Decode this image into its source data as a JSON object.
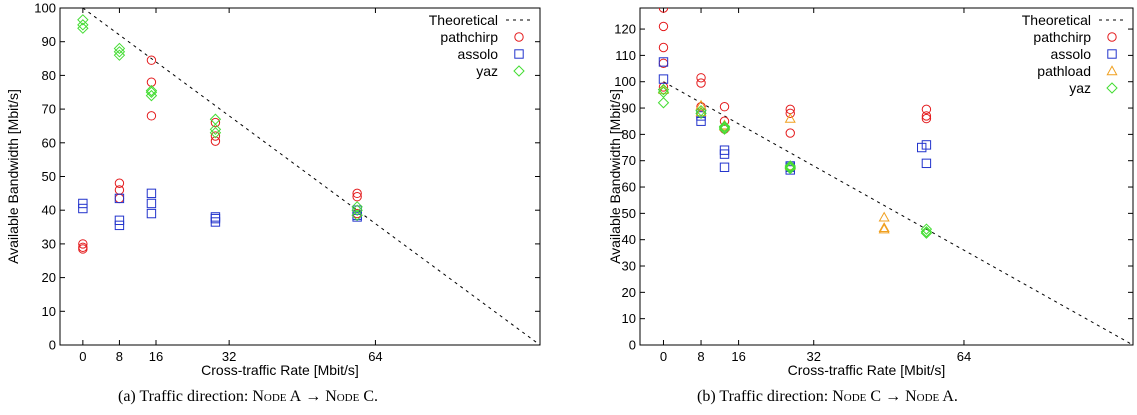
{
  "chart_data": [
    {
      "type": "scatter",
      "xlabel": "Cross-traffic Rate [Mbit/s]",
      "ylabel": "Available Bandwidth [Mbit/s]",
      "xlim": [
        -5,
        100
      ],
      "ylim": [
        0,
        100
      ],
      "xticks": [
        0,
        8,
        16,
        32,
        64
      ],
      "yticks": [
        0,
        10,
        20,
        30,
        40,
        50,
        60,
        70,
        80,
        90,
        100
      ],
      "grid": false,
      "legend_position": "top-right",
      "theoretical": {
        "name": "Theoretical",
        "x": [
          0,
          100
        ],
        "y": [
          100,
          0
        ],
        "color": "#000000"
      },
      "series": [
        {
          "name": "pathchirp",
          "marker": "circle",
          "color": "#e41a1c",
          "points": [
            [
              0,
              30
            ],
            [
              0,
              29
            ],
            [
              0,
              28.5
            ],
            [
              8,
              48
            ],
            [
              8,
              46
            ],
            [
              8,
              43.5
            ],
            [
              15,
              84.5
            ],
            [
              15,
              78
            ],
            [
              15,
              68
            ],
            [
              29,
              66
            ],
            [
              29,
              62
            ],
            [
              29,
              60.5
            ],
            [
              60,
              45
            ],
            [
              60,
              44
            ],
            [
              60,
              39
            ]
          ]
        },
        {
          "name": "assolo",
          "marker": "square",
          "color": "#2233cc",
          "points": [
            [
              0,
              42
            ],
            [
              0,
              40.5
            ],
            [
              8,
              43.5
            ],
            [
              8,
              37
            ],
            [
              8,
              35.5
            ],
            [
              15,
              45
            ],
            [
              15,
              42
            ],
            [
              15,
              39
            ],
            [
              29,
              38
            ],
            [
              29,
              37.5
            ],
            [
              29,
              36.5
            ],
            [
              60,
              40
            ],
            [
              60,
              38.5
            ],
            [
              60,
              38
            ]
          ]
        },
        {
          "name": "yaz",
          "marker": "diamond",
          "color": "#44dd33",
          "points": [
            [
              0,
              96.5
            ],
            [
              0,
              95
            ],
            [
              0,
              94
            ],
            [
              8,
              88
            ],
            [
              8,
              87
            ],
            [
              8,
              86
            ],
            [
              15,
              75.5
            ],
            [
              15,
              75
            ],
            [
              15,
              74
            ],
            [
              29,
              67
            ],
            [
              29,
              64
            ],
            [
              29,
              63
            ],
            [
              60,
              41
            ],
            [
              60,
              40
            ],
            [
              60,
              38.5
            ]
          ]
        }
      ]
    },
    {
      "type": "scatter",
      "xlabel": "Cross-traffic Rate [Mbit/s]",
      "ylabel": "Available Bandwidth [Mbit/s]",
      "xlim": [
        -5,
        100
      ],
      "ylim": [
        0,
        128
      ],
      "xticks": [
        0,
        8,
        16,
        32,
        64
      ],
      "yticks": [
        0,
        10,
        20,
        30,
        40,
        50,
        60,
        70,
        80,
        90,
        100,
        110,
        120
      ],
      "grid": false,
      "legend_position": "top-right",
      "theoretical": {
        "name": "Theoretical",
        "x": [
          0,
          100
        ],
        "y": [
          100,
          0
        ],
        "color": "#000000"
      },
      "series": [
        {
          "name": "pathchirp",
          "marker": "circle",
          "color": "#e41a1c",
          "points": [
            [
              0,
              128
            ],
            [
              0,
              121
            ],
            [
              0,
              113
            ],
            [
              0,
              107
            ],
            [
              0,
              98
            ],
            [
              8,
              101.5
            ],
            [
              8,
              99.5
            ],
            [
              8,
              90.5
            ],
            [
              13,
              90.5
            ],
            [
              13,
              85
            ],
            [
              13,
              82
            ],
            [
              27,
              89.5
            ],
            [
              27,
              88
            ],
            [
              27,
              80.5
            ],
            [
              56,
              89.5
            ],
            [
              56,
              87
            ],
            [
              56,
              86
            ]
          ]
        },
        {
          "name": "assolo",
          "marker": "square",
          "color": "#2233cc",
          "points": [
            [
              0,
              107.5
            ],
            [
              0,
              101
            ],
            [
              8,
              88
            ],
            [
              8,
              87
            ],
            [
              8,
              85
            ],
            [
              13,
              74
            ],
            [
              13,
              72.5
            ],
            [
              13,
              67.5
            ],
            [
              27,
              68
            ],
            [
              27,
              67.5
            ],
            [
              27,
              66.5
            ],
            [
              55,
              75
            ],
            [
              56,
              76
            ],
            [
              56,
              69
            ]
          ]
        },
        {
          "name": "pathload",
          "marker": "triangle",
          "color": "#f0a020",
          "points": [
            [
              0,
              97
            ],
            [
              8,
              91
            ],
            [
              8,
              88.5
            ],
            [
              13,
              83.5
            ],
            [
              13,
              83
            ],
            [
              27,
              86
            ],
            [
              27,
              68
            ],
            [
              47,
              48.5
            ],
            [
              47,
              44.5
            ],
            [
              47,
              44
            ]
          ]
        },
        {
          "name": "yaz",
          "marker": "diamond",
          "color": "#44dd33",
          "points": [
            [
              0,
              97
            ],
            [
              0,
              96
            ],
            [
              0,
              92
            ],
            [
              8,
              89
            ],
            [
              8,
              88
            ],
            [
              13,
              83
            ],
            [
              13,
              82.5
            ],
            [
              13,
              82
            ],
            [
              27,
              68
            ],
            [
              27,
              67.5
            ],
            [
              27,
              67
            ],
            [
              56,
              44
            ],
            [
              56,
              43
            ],
            [
              56,
              42.5
            ]
          ]
        }
      ]
    }
  ],
  "captions": {
    "a": {
      "prefix": "(a) Traffic direction: ",
      "from": "Node A",
      "arrow": "→",
      "to": "Node C."
    },
    "b": {
      "prefix": "(b) Traffic direction: ",
      "from": "Node C",
      "arrow": "→",
      "to": "Node A."
    }
  }
}
